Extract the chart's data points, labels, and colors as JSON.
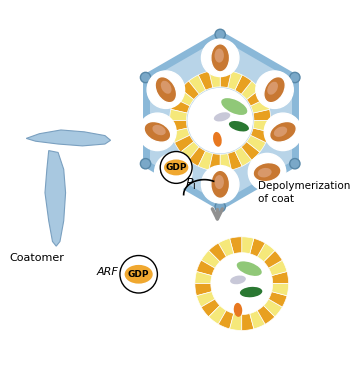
{
  "bg_color": "#ffffff",
  "light_blue": "#b8d4e8",
  "yellow_stripe": "#f5e87a",
  "orange_stripe": "#e8a020",
  "brown_oval": "#c87832",
  "brown_oval_light": "#d8986a",
  "green_light": "#90c878",
  "green_dark": "#2a7832",
  "orange_small": "#e87820",
  "gray_oval": "#c8c8d8",
  "gdp_color": "#f0a830",
  "arrow_color": "#909090",
  "coatomer_blue": "#a8c8e0",
  "coatomer_edge": "#7aa0c0",
  "bar_color": "#8ab8d8",
  "corner_color": "#7aa8c8",
  "corner_edge": "#5888a8",
  "text_depolym": "Depolymerization\nof coat",
  "text_gdp": "GDP",
  "text_arf": "ARF",
  "text_coatomer": "Coatomer"
}
